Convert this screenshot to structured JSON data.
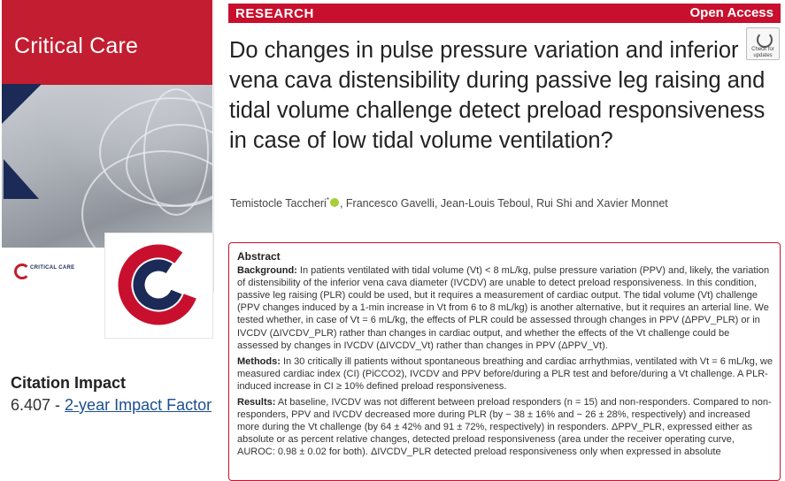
{
  "cover": {
    "journal_title": "Critical Care",
    "footer_text": "CRITICAL CARE"
  },
  "citation": {
    "heading": "Citation Impact",
    "value": "6.407",
    "separator": " - ",
    "link_label": "2-year Impact Factor"
  },
  "article": {
    "section_label": "RESEARCH",
    "access_label": "Open Access",
    "check_updates": "Check for updates",
    "title": "Do changes in pulse pressure variation and inferior vena cava distensibility during passive leg raising and tidal volume challenge detect preload responsiveness in case of low tidal volume ventilation?",
    "author_first": "Temistocle Taccheri",
    "author_first_mark": "*",
    "authors_rest": ", Francesco Gavelli, Jean-Louis Teboul, Rui Shi and Xavier Monnet"
  },
  "abstract": {
    "heading": "Abstract",
    "background_label": "Background:",
    "background_text": "In patients ventilated with tidal volume (Vt) < 8 mL/kg, pulse pressure variation (PPV) and, likely, the variation of distensibility of the inferior vena cava diameter (IVCDV) are unable to detect preload responsiveness. In this condition, passive leg raising (PLR) could be used, but it requires a measurement of cardiac output. The tidal volume (Vt) challenge (PPV changes induced by a 1-min increase in Vt from 6 to 8 mL/kg) is another alternative, but it requires an arterial line. We tested whether, in case of Vt = 6 mL/kg, the effects of PLR could be assessed through changes in PPV (ΔPPV_PLR) or in IVCDV (ΔIVCDV_PLR) rather than changes in cardiac output, and whether the effects of the Vt challenge could be assessed by changes in IVCDV (ΔIVCDV_Vt) rather than changes in PPV (ΔPPV_Vt).",
    "methods_label": "Methods:",
    "methods_text": "In 30 critically ill patients without spontaneous breathing and cardiac arrhythmias, ventilated with Vt = 6 mL/kg, we measured cardiac index (CI) (PiCCO2), IVCDV and PPV before/during a PLR test and before/during a Vt challenge. A PLR-induced increase in CI ≥ 10% defined preload responsiveness.",
    "results_label": "Results:",
    "results_text": "At baseline, IVCDV was not different between preload responders (n = 15) and non-responders. Compared to non-responders, PPV and IVCDV decreased more during PLR (by − 38 ± 16% and − 26 ± 28%, respectively) and increased more during the Vt challenge (by 64 ± 42% and 91 ± 72%, respectively) in responders. ΔPPV_PLR, expressed either as absolute or as percent relative changes, detected preload responsiveness (area under the receiver operating curve, AUROC: 0.98 ± 0.02 for both). ΔIVCDV_PLR detected preload responsiveness only when expressed in absolute"
  },
  "colors": {
    "accent_red": "#c8102e",
    "cover_navy": "#1b2a56",
    "link_blue": "#1c4f8f",
    "orcid_green": "#a6ce39"
  }
}
